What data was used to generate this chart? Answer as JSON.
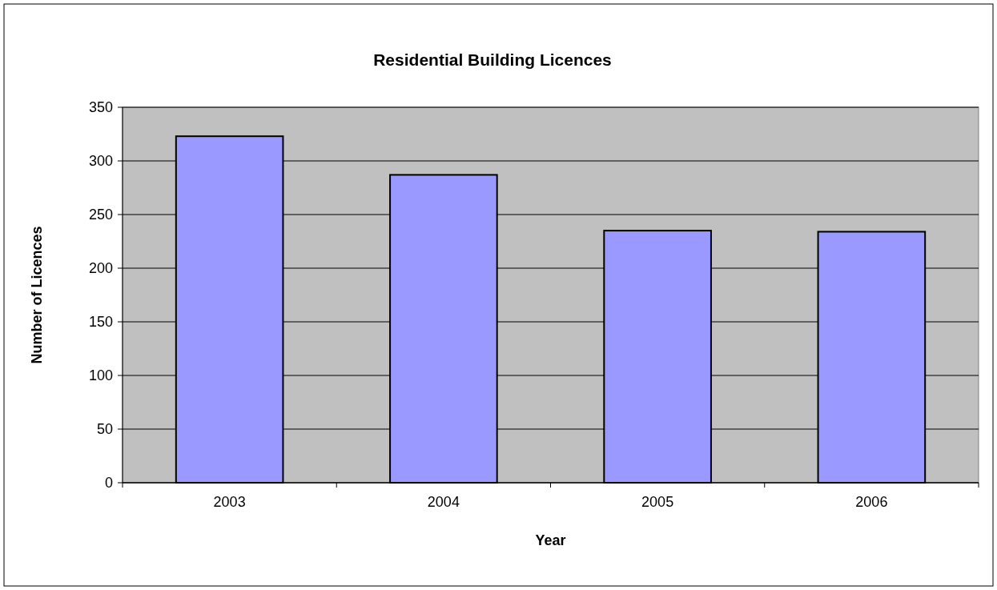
{
  "chart_data": {
    "type": "bar",
    "title": "Residential Building Licences",
    "xlabel": "Year",
    "ylabel": "Number of Licences",
    "categories": [
      "2003",
      "2004",
      "2005",
      "2006"
    ],
    "values": [
      323,
      287,
      235,
      234
    ],
    "color": "#9999ff",
    "ylim": [
      0,
      350
    ],
    "yticks": [
      0,
      50,
      100,
      150,
      200,
      250,
      300,
      350
    ],
    "grid": "y"
  }
}
